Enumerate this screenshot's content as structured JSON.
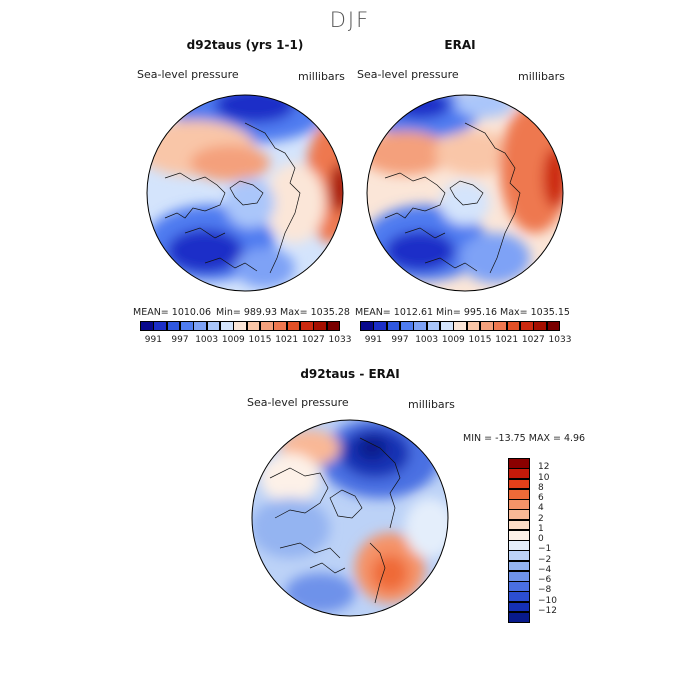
{
  "season": "DJF",
  "panels": [
    {
      "title": "d92taus (yrs 1-1)",
      "variable": "Sea-level pressure",
      "units": "millibars",
      "stats": {
        "mean_label": "MEAN= 1010.06",
        "min_label": "Min= 989.93",
        "max_label": "Max= 1035.28"
      }
    },
    {
      "title": "ERAI",
      "variable": "Sea-level pressure",
      "units": "millibars",
      "stats": {
        "mean_label": "MEAN= 1012.61",
        "min_label": "Min= 995.16",
        "max_label": "Max= 1035.15"
      }
    }
  ],
  "absolute_colorbar": {
    "colors": [
      "#08088c",
      "#1c2fc8",
      "#2f58e0",
      "#4f7cf0",
      "#7ea2f6",
      "#aac6fa",
      "#d4e4fc",
      "#fbe6d8",
      "#f9c6a8",
      "#f4a07c",
      "#ee7850",
      "#e25026",
      "#cc2a10",
      "#a50f00",
      "#7a0000"
    ],
    "tick_labels": [
      "991",
      "997",
      "1003",
      "1009",
      "1015",
      "1021",
      "1027",
      "1033"
    ]
  },
  "difference_panel": {
    "title": "d92taus - ERAI",
    "variable": "Sea-level pressure",
    "units": "millibars",
    "minmax_label": "MIN = -13.75  MAX =    4.96",
    "colorbar": {
      "colors_top_to_bottom": [
        "#8b0000",
        "#c41a0a",
        "#e3401a",
        "#ef6a38",
        "#f59368",
        "#f9b896",
        "#fcdcc6",
        "#fdf1e8",
        "#e4eefb",
        "#bcd2f7",
        "#94b4f1",
        "#6e92ea",
        "#4a6fe2",
        "#2c4ed2",
        "#1530b4",
        "#081a8c"
      ],
      "tick_labels": [
        "12",
        "10",
        "8",
        "6",
        "4",
        "2",
        "1",
        "0",
        "-1",
        "-2",
        "-4",
        "-6",
        "-8",
        "-10",
        "-12"
      ]
    }
  }
}
